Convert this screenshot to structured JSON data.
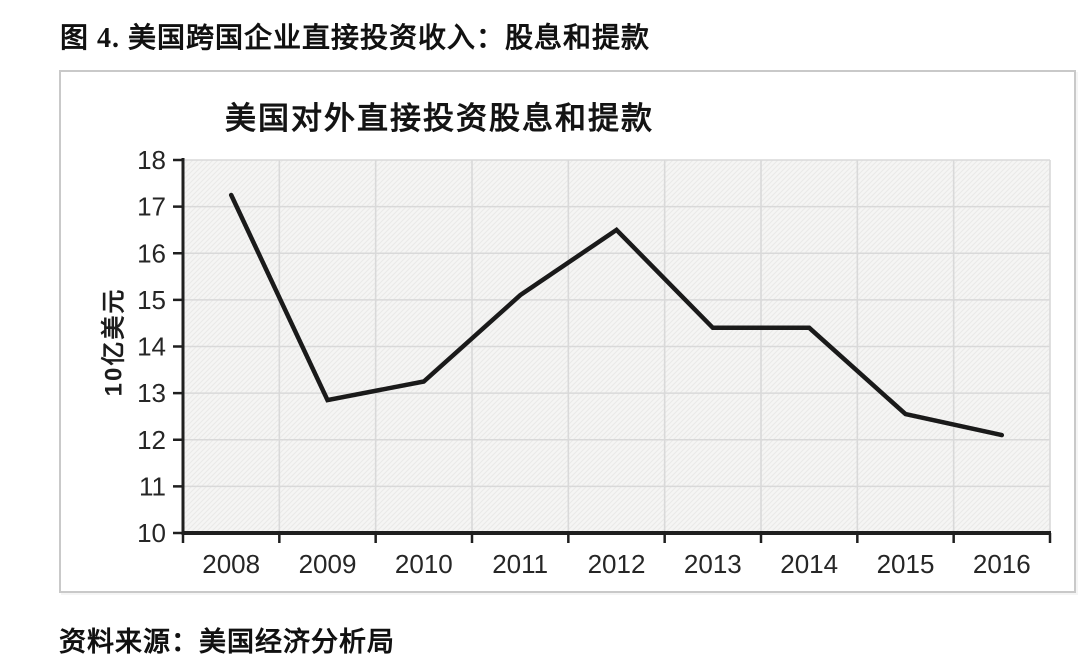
{
  "figure": {
    "title": "图 4. 美国跨国企业直接投资收入：股息和提款",
    "source": "资料来源：美国经济分析局"
  },
  "chart_data": {
    "type": "line",
    "title": "美国对外直接投资股息和提款",
    "xlabel": "",
    "ylabel": "10亿美元",
    "categories": [
      "2008",
      "2009",
      "2010",
      "2011",
      "2012",
      "2013",
      "2014",
      "2015",
      "2016"
    ],
    "series": [
      {
        "name": "美国对外直接投资股息和提款",
        "values": [
          17.25,
          12.85,
          13.25,
          15.1,
          16.5,
          14.4,
          14.4,
          12.55,
          12.1
        ]
      }
    ],
    "ylim": [
      10,
      18
    ],
    "ytick_step": 1,
    "yticks": [
      10,
      11,
      12,
      13,
      14,
      15,
      16,
      17,
      18
    ],
    "grid": true,
    "legend_position": "none",
    "colors": {
      "line": "#1a1a1a",
      "axis": "#1f1f1f",
      "gridline": "#d9d9d9",
      "plot_background": "#f5f5f4",
      "plot_hatch": "#eae9e8",
      "tick_label": "#262626",
      "frame_border": "#c9c9c9"
    }
  }
}
